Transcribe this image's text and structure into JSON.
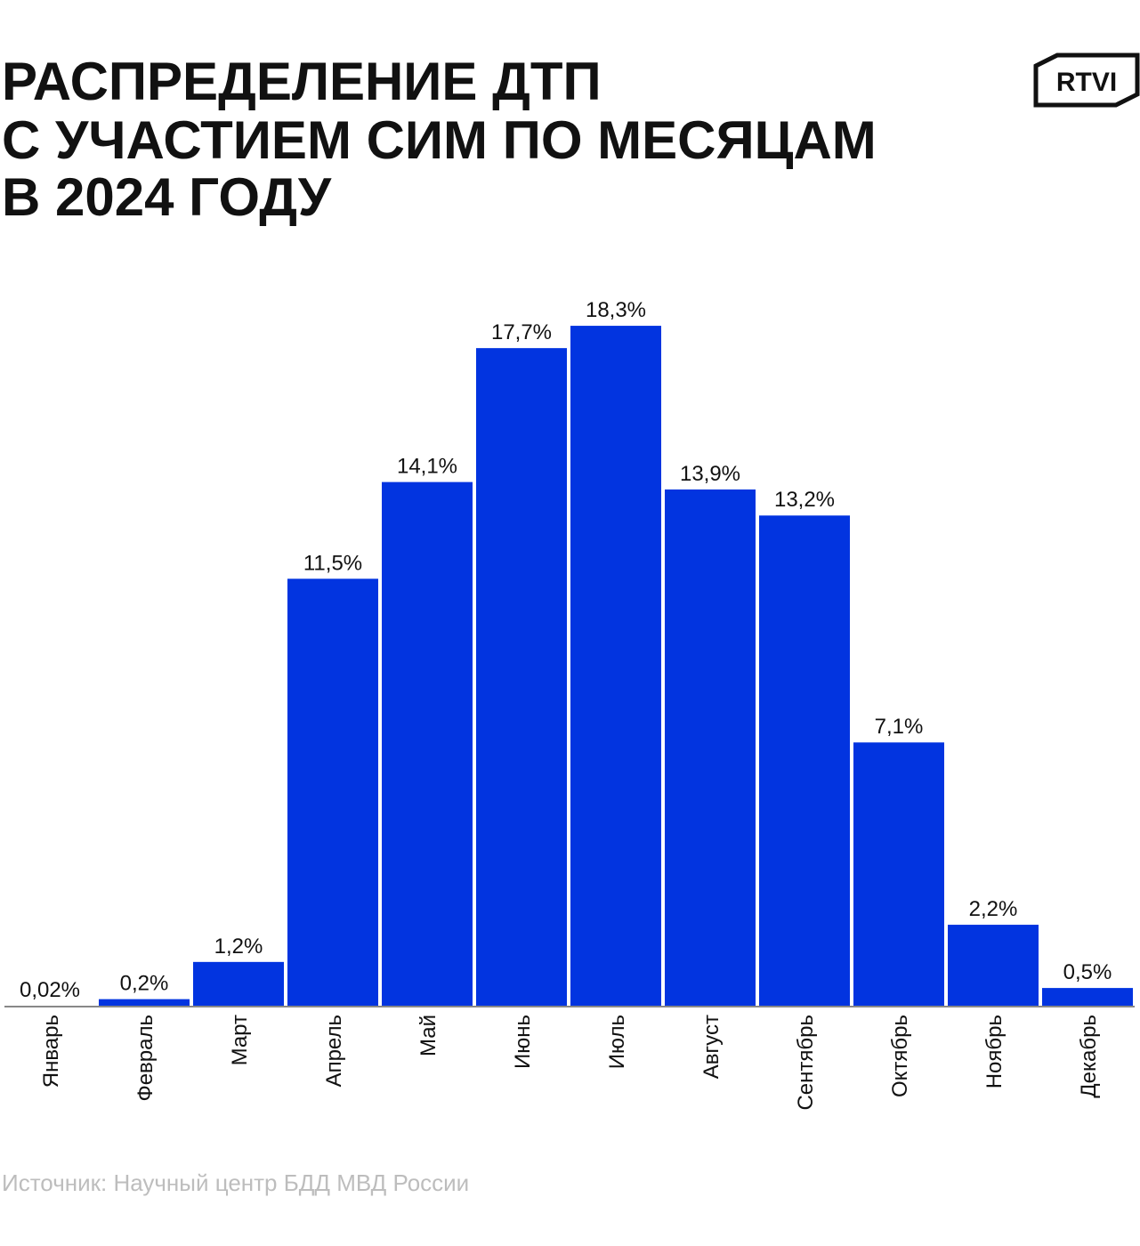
{
  "chart_data": {
    "type": "bar",
    "title": [
      "РАСПРЕДЕЛЕНИЕ ДТП",
      "С УЧАСТИЕМ СИМ ПО МЕСЯЦАМ",
      "В 2024 ГОДУ"
    ],
    "logo": "RTVI",
    "source": "Источник: Научный центр БДД МВД России",
    "categories": [
      "Январь",
      "Февраль",
      "Март",
      "Апрель",
      "Май",
      "Июнь",
      "Июль",
      "Август",
      "Сентябрь",
      "Октябрь",
      "Ноябрь",
      "Декабрь"
    ],
    "values": [
      0.02,
      0.2,
      1.2,
      11.5,
      14.1,
      17.7,
      18.3,
      13.9,
      13.2,
      7.1,
      2.2,
      0.5
    ],
    "value_labels": [
      "0,02%",
      "0,2%",
      "1,2%",
      "11,5%",
      "14,1%",
      "17,7%",
      "18,3%",
      "13,9%",
      "13,2%",
      "7,1%",
      "2,2%",
      "0,5%"
    ],
    "color": "#0234e0"
  }
}
